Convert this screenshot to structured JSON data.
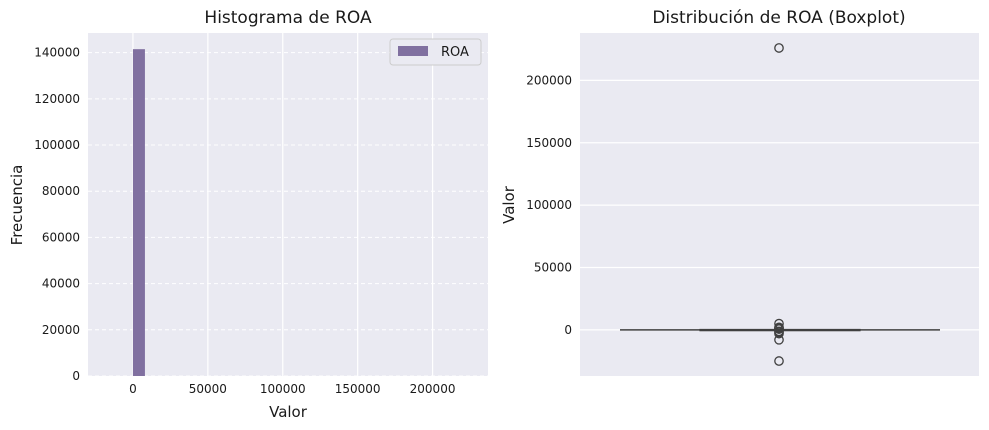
{
  "chart_data": [
    {
      "type": "bar",
      "title": "Histograma de ROA",
      "xlabel": "Valor",
      "ylabel": "Frecuencia",
      "legend": {
        "entries": [
          "ROA"
        ],
        "placement": "upper-right"
      },
      "xlim": [
        -30000,
        237000
      ],
      "ylim": [
        0,
        148500
      ],
      "x_ticks": [
        0,
        50000,
        100000,
        150000,
        200000
      ],
      "y_ticks": [
        0,
        20000,
        40000,
        60000,
        80000,
        100000,
        120000,
        140000
      ],
      "grid": "both, dashed horizontal",
      "bins": [
        {
          "x0": 0,
          "x1": 8000,
          "count": 141500
        }
      ],
      "series": [
        {
          "name": "ROA",
          "color": "#8070a0"
        }
      ]
    },
    {
      "type": "boxplot",
      "title": "Distribución de ROA (Boxplot)",
      "xlabel": "",
      "ylabel": "Valor",
      "ylim": [
        -37000,
        238000
      ],
      "y_ticks": [
        0,
        50000,
        100000,
        150000,
        200000
      ],
      "grid": "horizontal",
      "box": {
        "q1": -100,
        "median": 100,
        "q3": 300,
        "whisker_low": -600,
        "whisker_high": 800
      },
      "outliers": [
        226000,
        5000,
        2000,
        1500,
        1000,
        600,
        -1200,
        -2000,
        -3000,
        -8000,
        -25000
      ],
      "color": "#404040"
    }
  ]
}
